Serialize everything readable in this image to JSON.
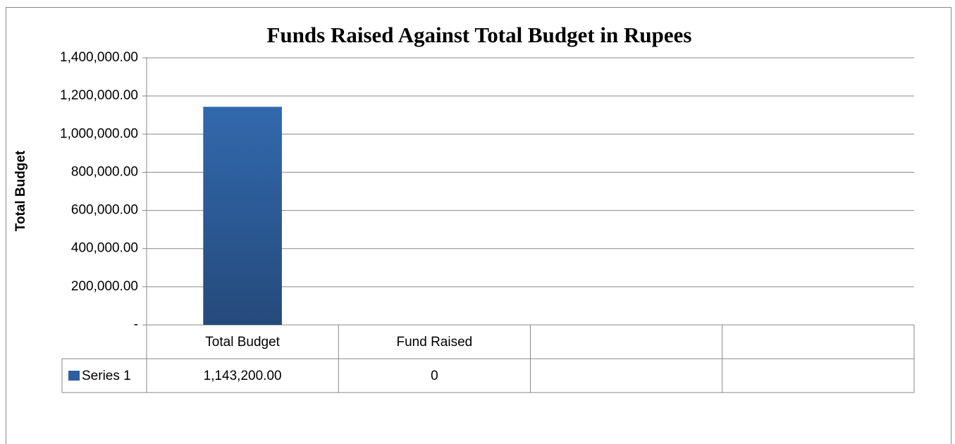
{
  "chart_data": {
    "type": "bar",
    "title": "Funds Raised Against Total Budget in Rupees",
    "y_label": "Total Budget",
    "categories": [
      "Total Budget",
      "Fund Raised",
      null,
      null
    ],
    "series": [
      {
        "name": "Series 1",
        "color": "#2d5f9e",
        "values": [
          1143200,
          0,
          null,
          null
        ],
        "value_labels": [
          "1,143,200.00",
          "0",
          null,
          null
        ]
      }
    ],
    "ylim": [
      0,
      1400000
    ],
    "yticks": [
      {
        "value": 0,
        "label": "-"
      },
      {
        "value": 200000,
        "label": "200,000.00"
      },
      {
        "value": 400000,
        "label": "400,000.00"
      },
      {
        "value": 600000,
        "label": "600,000.00"
      },
      {
        "value": 800000,
        "label": "800,000.00"
      },
      {
        "value": 1000000,
        "label": "1,000,000.00"
      },
      {
        "value": 1200000,
        "label": "1,200,000.00"
      },
      {
        "value": 1400000,
        "label": "1,400,000.00"
      }
    ],
    "grid": true,
    "legend": "table"
  }
}
